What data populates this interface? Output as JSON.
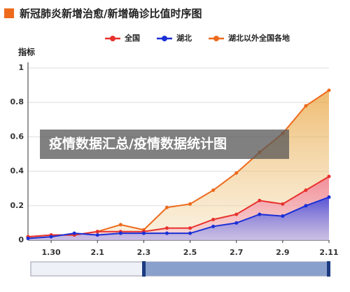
{
  "chart_data": {
    "type": "line",
    "title": "新冠肺炎新增治愈/新增确诊比值时序图",
    "y_label": "指标",
    "overlay_text": "疫情数据汇总/疫情数据统计图",
    "categories": [
      null,
      "1.30",
      null,
      "2.1",
      null,
      "2.3",
      null,
      "2.5",
      null,
      "2.7",
      null,
      "2.9",
      null,
      "2.11"
    ],
    "series": [
      {
        "name": "全国",
        "color": "#e8322e",
        "values": [
          0.02,
          0.03,
          0.03,
          0.05,
          0.05,
          0.05,
          0.07,
          0.07,
          0.12,
          0.15,
          0.23,
          0.21,
          0.29,
          0.37
        ]
      },
      {
        "name": "湖北",
        "color": "#1a2fd6",
        "values": [
          0.01,
          0.02,
          0.04,
          0.03,
          0.04,
          0.04,
          0.04,
          0.04,
          0.08,
          0.1,
          0.15,
          0.14,
          0.2,
          0.25
        ]
      },
      {
        "name": "湖北以外全国各地",
        "color": "#ee6a1c",
        "values": [
          0.02,
          0.03,
          0.03,
          0.05,
          0.09,
          0.06,
          0.19,
          0.21,
          0.29,
          0.39,
          0.51,
          0.62,
          0.78,
          0.87
        ]
      }
    ],
    "ylim": [
      0,
      1
    ],
    "yticks": [
      0,
      0.2,
      0.4,
      0.6,
      0.8,
      1
    ],
    "grid": true
  }
}
